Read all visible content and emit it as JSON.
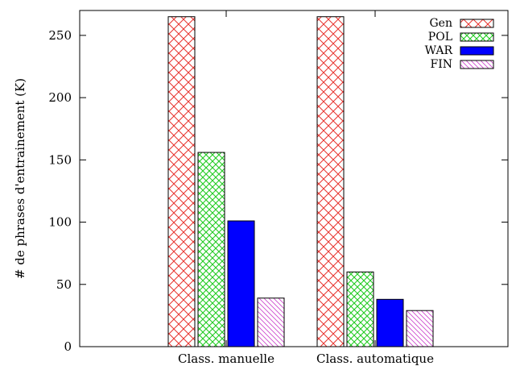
{
  "chart_data": {
    "type": "bar",
    "title": "",
    "xlabel": "",
    "ylabel": "# de phrases d'entrainement (K)",
    "categories": [
      "Class. manuelle",
      "Class. automatique"
    ],
    "series": [
      {
        "name": "Gen",
        "values": [
          265,
          265
        ],
        "color": "#e8332e",
        "pattern": "crosshatch"
      },
      {
        "name": "POL",
        "values": [
          156,
          60
        ],
        "color": "#22cc22",
        "pattern": "dense-crosshatch"
      },
      {
        "name": "WAR",
        "values": [
          101,
          38
        ],
        "color": "#0000ff",
        "pattern": "solid"
      },
      {
        "name": "FIN",
        "values": [
          39,
          29
        ],
        "color": "#cc44cc",
        "pattern": "diagonal"
      }
    ],
    "ylim": [
      0,
      270
    ],
    "yticks": [
      0,
      50,
      100,
      150,
      200,
      250
    ],
    "grid": false,
    "legend_position": "top-right"
  }
}
